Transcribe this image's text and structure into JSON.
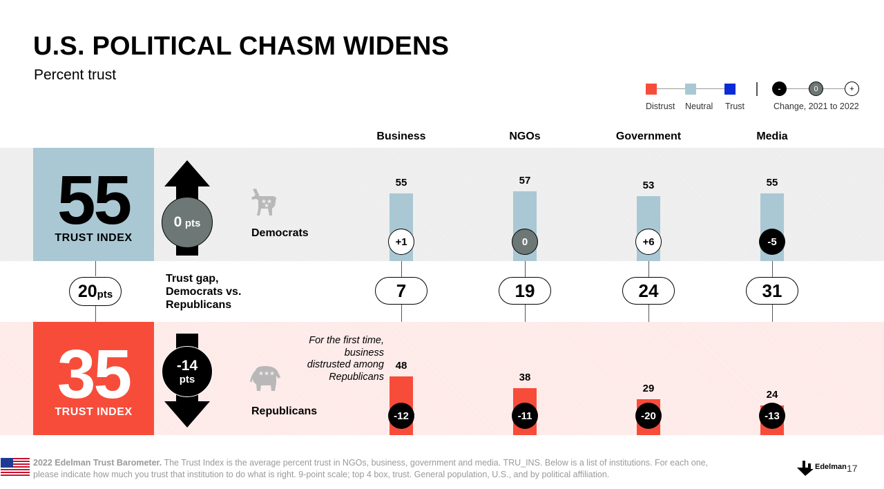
{
  "header": {
    "title": "U.S. POLITICAL CHASM WIDENS",
    "subtitle": "Percent trust"
  },
  "legend": {
    "distrust": "Distrust",
    "neutral": "Neutral",
    "trust": "Trust",
    "change_label": "Change, 2021 to 2022",
    "change_symbols": {
      "neg": "-",
      "zero": "0",
      "pos": "+"
    },
    "colors": {
      "distrust": "#f84c3a",
      "neutral": "#a9c8d4",
      "trust": "#0a2bd6"
    }
  },
  "democrats": {
    "label": "Democrats",
    "trust_index": "55",
    "trust_index_label": "TRUST INDEX",
    "change_value": "0",
    "change_unit": "pts"
  },
  "republicans": {
    "label": "Republicans",
    "trust_index": "35",
    "trust_index_label": "TRUST INDEX",
    "change_value": "-14",
    "change_unit": "pts",
    "annotation": "For the first time, business distrusted among Republicans"
  },
  "gap": {
    "value": "20",
    "unit": "pts",
    "label": "Trust gap, Democrats vs. Republicans"
  },
  "chart_data": {
    "type": "bar",
    "categories": [
      "Business",
      "NGOs",
      "Government",
      "Media"
    ],
    "series": [
      {
        "name": "Democrats",
        "values": [
          55,
          57,
          53,
          55
        ],
        "change": [
          "+1",
          "0",
          "+6",
          "-5"
        ],
        "level": [
          "neutral",
          "neutral",
          "neutral",
          "neutral"
        ]
      },
      {
        "name": "Republicans",
        "values": [
          48,
          38,
          29,
          24
        ],
        "change": [
          "-12",
          "-11",
          "-20",
          "-13"
        ],
        "level": [
          "distrust",
          "distrust",
          "distrust",
          "distrust"
        ]
      }
    ],
    "gaps": [
      "7",
      "19",
      "24",
      "31"
    ],
    "ylim": [
      0,
      100
    ]
  },
  "footer": {
    "source_bold": "2022 Edelman Trust Barometer.",
    "source_text": " The Trust Index is the average percent trust in NGOs, business, government and media. TRU_INS. Below is a list of institutions. For each one, please indicate how much you trust that institution to do what is right. 9-point scale; top 4 box, trust. General population, U.S., and by political affiliation.",
    "brand": "Edelman",
    "page_number": "17"
  }
}
